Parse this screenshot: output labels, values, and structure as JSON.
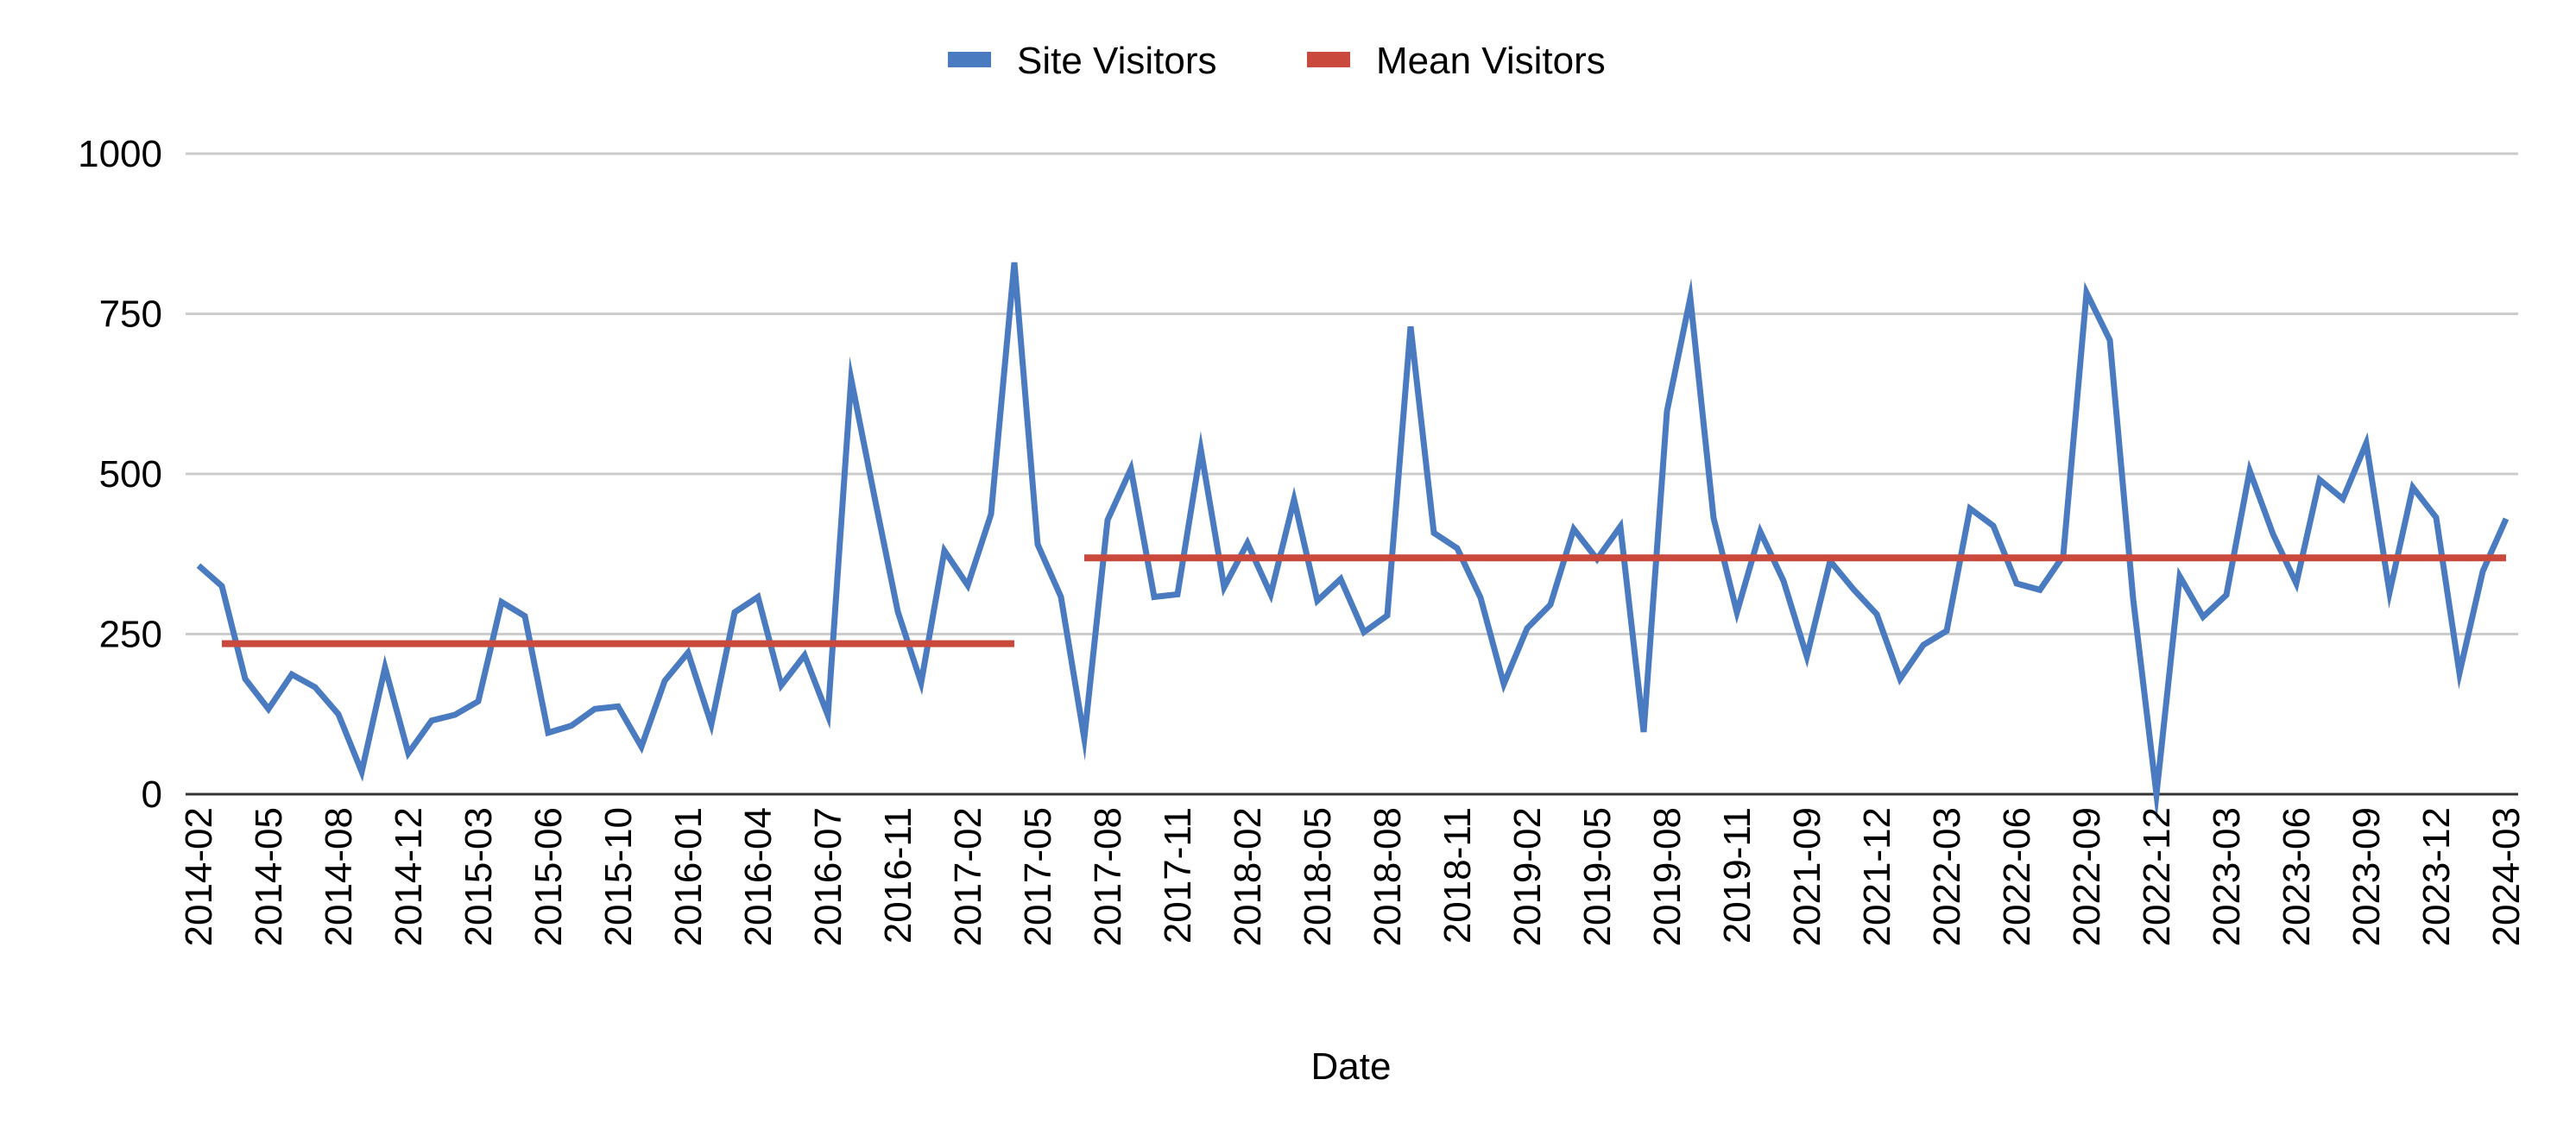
{
  "chart_data": {
    "type": "line",
    "title": "",
    "xlabel": "Date",
    "ylabel": "",
    "ylim": [
      0,
      1000
    ],
    "yticks": [
      0,
      250,
      500,
      750,
      1000
    ],
    "grid": true,
    "legend_position": "top-center",
    "x": [
      "2014-02",
      "2014-03",
      "2014-04",
      "2014-05",
      "2014-06",
      "2014-07",
      "2014-08",
      "2014-10",
      "2014-11",
      "2014-12",
      "2015-01",
      "2015-02",
      "2015-03",
      "2015-04",
      "2015-05",
      "2015-06",
      "2015-07",
      "2015-09",
      "2015-10",
      "2015-11",
      "2015-12",
      "2016-01",
      "2016-02",
      "2016-03",
      "2016-04",
      "2016-05",
      "2016-06",
      "2016-07",
      "2016-08",
      "2016-09",
      "2016-11",
      "2016-12",
      "2017-01",
      "2017-02",
      "2017-03",
      "2017-04",
      "2017-05",
      "2017-06",
      "2017-07",
      "2017-08",
      "2017-09",
      "2017-10",
      "2017-11",
      "2017-12",
      "2018-01",
      "2018-02",
      "2018-03",
      "2018-04",
      "2018-05",
      "2018-06",
      "2018-07",
      "2018-08",
      "2018-09",
      "2018-10",
      "2018-11",
      "2018-12",
      "2019-01",
      "2019-02",
      "2019-03",
      "2019-04",
      "2019-05",
      "2019-06",
      "2019-07",
      "2019-08",
      "2019-09",
      "2019-10",
      "2019-11",
      "2019-12",
      "2020-01",
      "2021-09",
      "2021-10",
      "2021-11",
      "2021-12",
      "2022-01",
      "2022-02",
      "2022-03",
      "2022-04",
      "2022-05",
      "2022-06",
      "2022-07",
      "2022-08",
      "2022-09",
      "2022-10",
      "2022-11",
      "2022-12",
      "2023-01",
      "2023-02",
      "2023-03",
      "2023-04",
      "2023-05",
      "2023-06",
      "2023-07",
      "2023-08",
      "2023-09",
      "2023-10",
      "2023-11",
      "2023-12",
      "2024-01",
      "2024-02",
      "2024-03"
    ],
    "x_tick_labels": [
      "2014-02",
      "2014-05",
      "2014-08",
      "2014-12",
      "2015-03",
      "2015-06",
      "2015-10",
      "2016-01",
      "2016-04",
      "2016-07",
      "2016-11",
      "2017-02",
      "2017-05",
      "2017-08",
      "2017-11",
      "2018-02",
      "2018-05",
      "2018-08",
      "2018-11",
      "2019-02",
      "2019-05",
      "2019-08",
      "2019-11",
      "2021-09",
      "2021-12",
      "2022-03",
      "2022-06",
      "2022-09",
      "2022-12",
      "2023-03",
      "2023-06",
      "2023-09",
      "2023-12",
      "2024-03"
    ],
    "series": [
      {
        "name": "Site Visitors",
        "color": "#4a7bc1",
        "values": [
          357,
          325,
          180,
          133,
          187,
          167,
          125,
          35,
          198,
          64,
          115,
          124,
          145,
          300,
          278,
          96,
          107,
          133,
          137,
          74,
          177,
          221,
          109,
          284,
          308,
          170,
          217,
          123,
          648,
          464,
          285,
          174,
          380,
          326,
          437,
          830,
          390,
          308,
          87,
          428,
          508,
          308,
          312,
          538,
          323,
          392,
          312,
          460,
          302,
          336,
          253,
          279,
          730,
          408,
          384,
          307,
          172,
          259,
          296,
          414,
          367,
          418,
          97,
          598,
          775,
          431,
          284,
          410,
          333,
          215,
          364,
          320,
          281,
          180,
          233,
          255,
          446,
          419,
          329,
          319,
          372,
          783,
          709,
          305,
          0,
          340,
          277,
          311,
          505,
          406,
          329,
          491,
          461,
          548,
          315,
          479,
          432,
          189,
          348,
          430
        ]
      },
      {
        "name": "Mean Visitors",
        "color": "#c94a3c",
        "segments": [
          {
            "from": "2014-03",
            "to": "2017-04",
            "value": 235
          },
          {
            "from": "2017-07",
            "to": "2024-03",
            "value": 369
          }
        ]
      }
    ]
  }
}
